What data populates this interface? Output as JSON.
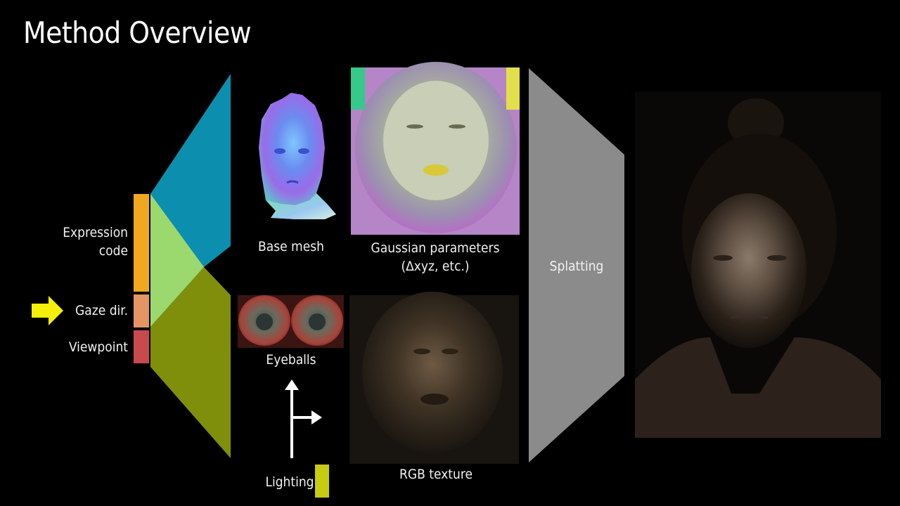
{
  "slide": {
    "title": "Method Overview"
  },
  "inputs": {
    "expression_code": "Expression\ncode",
    "gaze_dir": "Gaze dir.",
    "viewpoint": "Viewpoint"
  },
  "outputs": {
    "base_mesh": "Base mesh",
    "gaussian_parameters": "Gaussian parameters\n(Δxyz, etc.)",
    "eyeballs": "Eyeballs",
    "rgb_texture": "RGB texture",
    "lighting": "Lighting",
    "splatting": "Splatting"
  },
  "colors": {
    "background": "#000000",
    "expression_bar": "#f1a81e",
    "gaze_bar": "#e59463",
    "viewpoint_bar": "#c84a4d",
    "upper_decoder": "#0c8fae",
    "lower_decoder": "#7f8f0c",
    "shared_decoder": "#9bd86e",
    "splatting_shape": "#8b8b8b",
    "lighting_bar": "#c6cc10",
    "arrow_yellow": "#f5ef09"
  }
}
